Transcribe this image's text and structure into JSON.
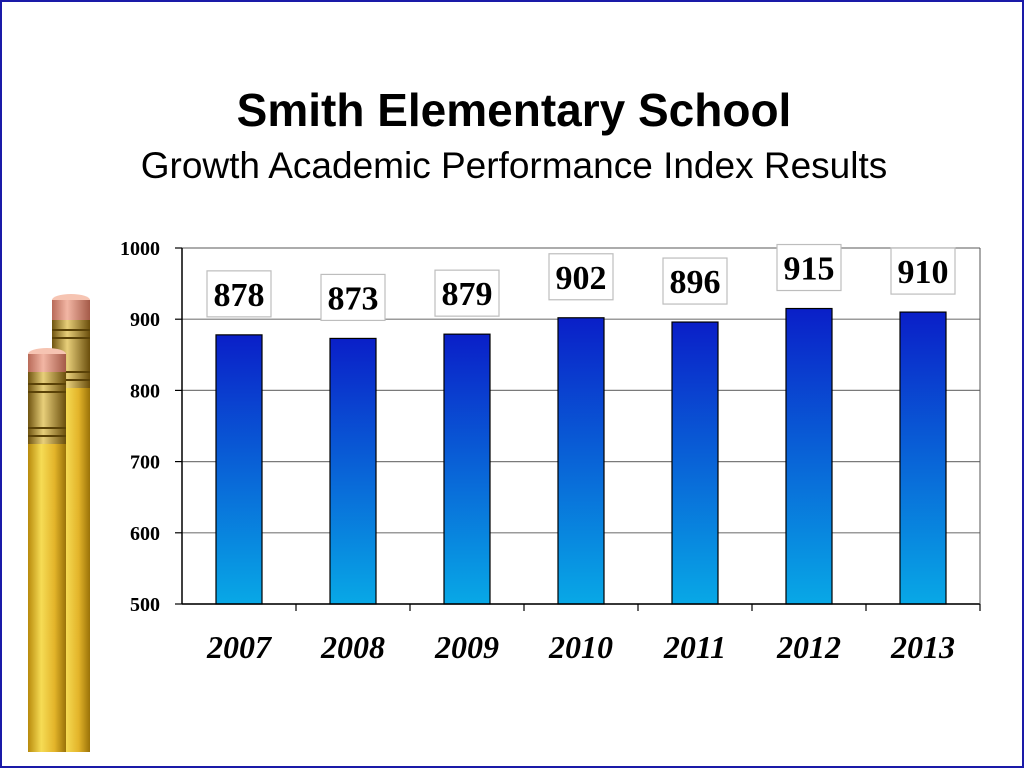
{
  "slide": {
    "title": "Smith Elementary School",
    "subtitle": "Growth Academic Performance Index Results",
    "border_color": "#1a1aa8"
  },
  "decoration": {
    "icon": "pencils-icon"
  },
  "chart_data": {
    "type": "bar",
    "title": "",
    "xlabel": "",
    "ylabel": "",
    "categories": [
      "2007",
      "2008",
      "2009",
      "2010",
      "2011",
      "2012",
      "2013"
    ],
    "values": [
      878,
      873,
      879,
      902,
      896,
      915,
      910
    ],
    "data_labels": [
      "878",
      "873",
      "879",
      "902",
      "896",
      "915",
      "910"
    ],
    "ylim": [
      500,
      1000
    ],
    "yticks": [
      500,
      600,
      700,
      800,
      900,
      1000
    ],
    "ytick_labels": [
      "500",
      "600",
      "700",
      "800",
      "900",
      "1000"
    ],
    "grid": true,
    "legend": "none",
    "bar_color_top": "#0a1fc8",
    "bar_color_bottom": "#08a8e6",
    "data_label_placement": "boxed above bar"
  }
}
